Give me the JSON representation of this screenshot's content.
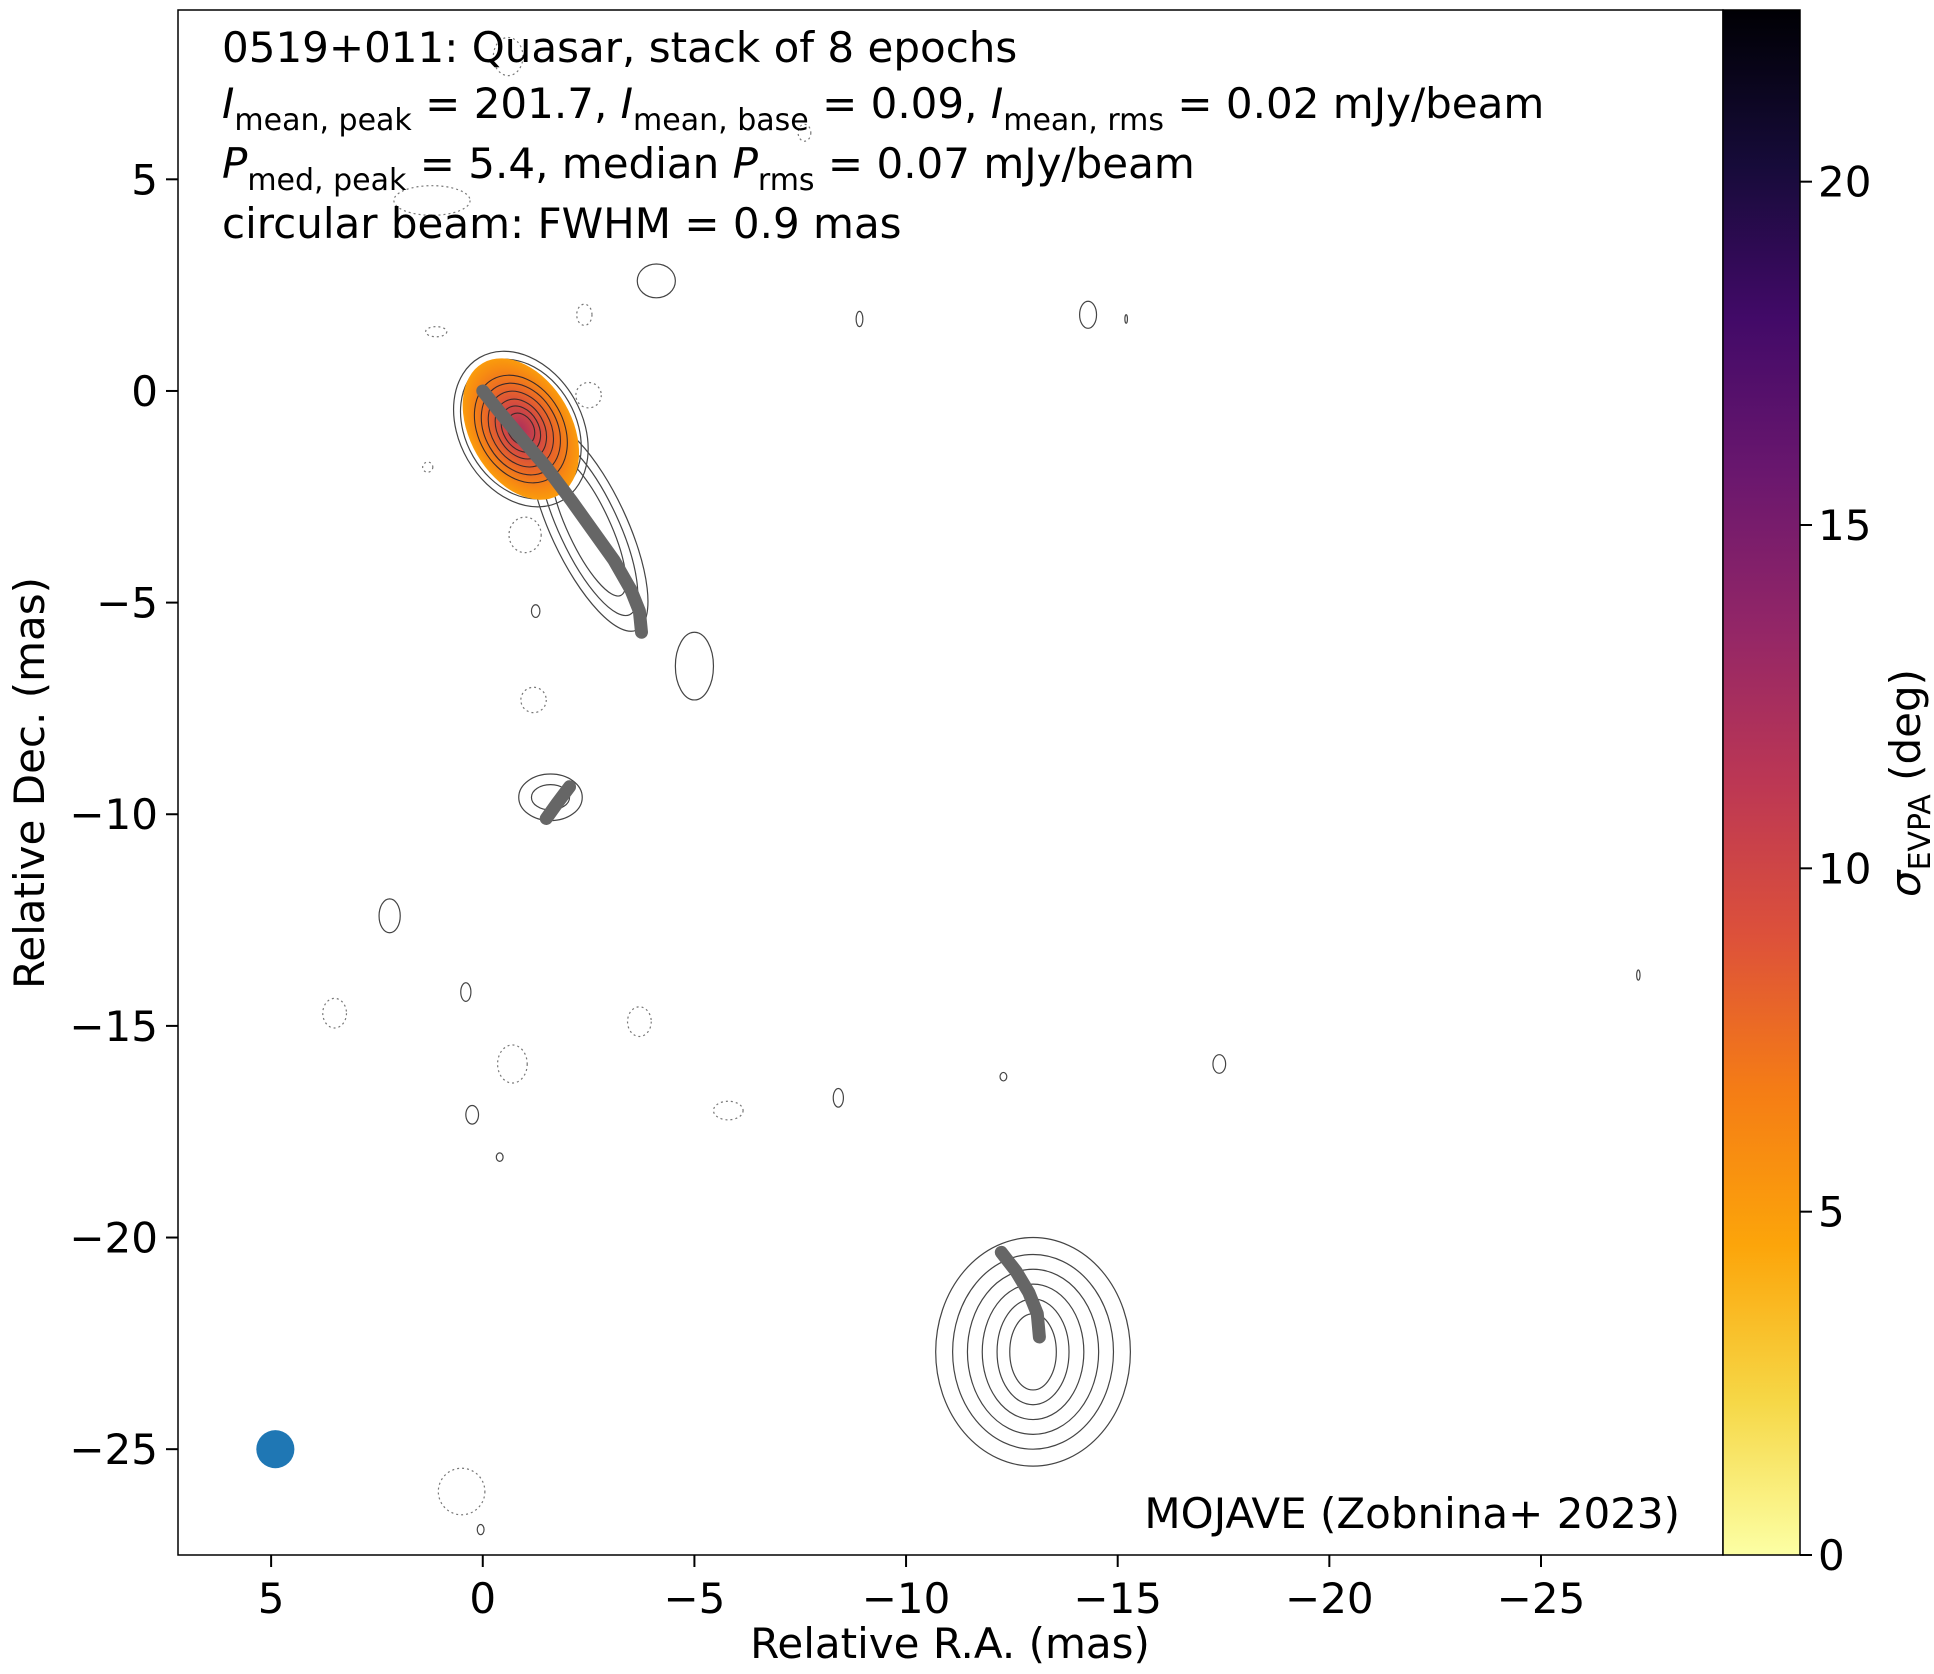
{
  "chart_data": {
    "type": "heatmap",
    "title_lines": [
      "0519+011: Quasar, stack of 8 epochs",
      "I_mean,peak = 201.7, I_mean,base = 0.09, I_mean,rms = 0.02 mJy/beam",
      "P_med,peak = 5.4, median P_rms = 0.07 mJy/beam",
      "circular beam: FWHM = 0.9 mas"
    ],
    "title": {
      "line1": "0519+011: Quasar, stack of 8 epochs",
      "line2": {
        "sym": "I",
        "sub_peak": "mean, peak",
        "val_peak": " = 201.7, ",
        "sub_base": "mean, base",
        "val_base": " = 0.09, ",
        "sub_rms": "mean, rms",
        "val_rms": " = 0.02 mJy/beam"
      },
      "line3": {
        "sym": "P",
        "sub_peak": "med, peak",
        "val_peak": " = 5.4, median ",
        "sub_rms": "rms",
        "val_rms": " = 0.07 mJy/beam"
      },
      "line4": "circular beam: FWHM = 0.9 mas"
    },
    "credit": "MOJAVE (Zobnina+ 2023)",
    "xlabel": "Relative R.A. (mas)",
    "ylabel": "Relative Dec. (mas)",
    "colorbar_label": {
      "sym": "σ",
      "sub": "EVPA",
      "unit": " (deg)"
    },
    "xlim": [
      7.2,
      -29.3
    ],
    "ylim": [
      -27.5,
      9.0
    ],
    "xticks": [
      5,
      0,
      -5,
      -10,
      -15,
      -20,
      -25
    ],
    "xtick_labels": [
      "5",
      "0",
      "−5",
      "−10",
      "−15",
      "−20",
      "−25"
    ],
    "yticks": [
      5,
      0,
      -5,
      -10,
      -15,
      -20,
      -25
    ],
    "ytick_labels": [
      "5",
      "0",
      "−5",
      "−10",
      "−15",
      "−20",
      "−25"
    ],
    "colorbar_range": [
      0,
      22.5
    ],
    "colorbar_ticks": [
      0,
      5,
      10,
      15,
      20
    ],
    "colorbar_tick_labels": [
      "0",
      "5",
      "10",
      "15",
      "20"
    ],
    "colormap": "inferno_r",
    "colormap_stops": [
      "#fcffa4",
      "#f6d746",
      "#fca50a",
      "#f57d15",
      "#dd513a",
      "#bc3754",
      "#932667",
      "#6a176e",
      "#420a68",
      "#160b39",
      "#000004"
    ],
    "beam": {
      "x": 4.9,
      "y": -25.0,
      "fwhm_mas": 0.9,
      "color": "#1f77b4"
    },
    "jet_ridgeline_color": "#666666",
    "ridgelines": [
      [
        [
          0.0,
          0.0
        ],
        [
          -0.4,
          -0.5
        ],
        [
          -0.9,
          -1.1
        ],
        [
          -1.5,
          -1.8
        ],
        [
          -2.1,
          -2.6
        ],
        [
          -2.6,
          -3.3
        ],
        [
          -3.1,
          -4.0
        ],
        [
          -3.5,
          -4.7
        ],
        [
          -3.7,
          -5.2
        ],
        [
          -3.75,
          -5.7
        ]
      ],
      [
        [
          -2.05,
          -9.35
        ],
        [
          -1.75,
          -9.75
        ],
        [
          -1.5,
          -10.1
        ]
      ],
      [
        [
          -12.25,
          -20.35
        ],
        [
          -12.6,
          -20.8
        ],
        [
          -12.9,
          -21.3
        ],
        [
          -13.1,
          -21.8
        ],
        [
          -13.15,
          -22.35
        ]
      ]
    ],
    "contours_positive": [
      {
        "cx": -0.9,
        "cy": -0.9,
        "rx_list": [
          1.45,
          1.3,
          1.15,
          1.0,
          0.85,
          0.7,
          0.55,
          0.42,
          0.3
        ],
        "ry_list": [
          1.95,
          1.75,
          1.55,
          1.35,
          1.15,
          0.95,
          0.75,
          0.58,
          0.4
        ],
        "angle": -30
      },
      {
        "cx": -2.5,
        "cy": -3.2,
        "rx_list": [
          0.9,
          0.7,
          0.5
        ],
        "ry_list": [
          2.7,
          2.3,
          1.8
        ],
        "angle": -25
      },
      {
        "cx": -5.0,
        "cy": -6.5,
        "rx_list": [
          0.45
        ],
        "ry_list": [
          0.8
        ],
        "angle": 0
      },
      {
        "cx": -1.6,
        "cy": -9.6,
        "rx_list": [
          0.75,
          0.45
        ],
        "ry_list": [
          0.55,
          0.3
        ],
        "angle": 0
      },
      {
        "cx": -13.0,
        "cy": -22.7,
        "rx_list": [
          2.3,
          1.9,
          1.55,
          1.2,
          0.85,
          0.55
        ],
        "ry_list": [
          2.7,
          2.3,
          1.95,
          1.6,
          1.25,
          0.9
        ],
        "angle": 0
      },
      {
        "cx": -4.1,
        "cy": 2.6,
        "rx_list": [
          0.45
        ],
        "ry_list": [
          0.4
        ],
        "angle": 0
      },
      {
        "cx": -14.3,
        "cy": 1.8,
        "rx_list": [
          0.2
        ],
        "ry_list": [
          0.32
        ],
        "angle": 0
      },
      {
        "cx": -8.9,
        "cy": 1.7,
        "rx_list": [
          0.08
        ],
        "ry_list": [
          0.18
        ],
        "angle": 0
      },
      {
        "cx": -15.2,
        "cy": 1.7,
        "rx_list": [
          0.03
        ],
        "ry_list": [
          0.1
        ],
        "angle": 0
      },
      {
        "cx": -1.25,
        "cy": -5.2,
        "rx_list": [
          0.1
        ],
        "ry_list": [
          0.15
        ],
        "angle": 0
      },
      {
        "cx": 2.2,
        "cy": -12.4,
        "rx_list": [
          0.25
        ],
        "ry_list": [
          0.4
        ],
        "angle": 0
      },
      {
        "cx": 0.4,
        "cy": -14.2,
        "rx_list": [
          0.12
        ],
        "ry_list": [
          0.22
        ],
        "angle": 0
      },
      {
        "cx": 0.25,
        "cy": -17.1,
        "rx_list": [
          0.15
        ],
        "ry_list": [
          0.22
        ],
        "angle": 0
      },
      {
        "cx": -0.4,
        "cy": -18.1,
        "rx_list": [
          0.08
        ],
        "ry_list": [
          0.1
        ],
        "angle": 0
      },
      {
        "cx": -8.4,
        "cy": -16.7,
        "rx_list": [
          0.12
        ],
        "ry_list": [
          0.22
        ],
        "angle": 0
      },
      {
        "cx": -12.3,
        "cy": -16.2,
        "rx_list": [
          0.08
        ],
        "ry_list": [
          0.1
        ],
        "angle": 0
      },
      {
        "cx": -17.4,
        "cy": -15.9,
        "rx_list": [
          0.15
        ],
        "ry_list": [
          0.22
        ],
        "angle": 0
      },
      {
        "cx": -27.3,
        "cy": -13.8,
        "rx_list": [
          0.04
        ],
        "ry_list": [
          0.12
        ],
        "angle": 0
      },
      {
        "cx": 0.05,
        "cy": -26.9,
        "rx_list": [
          0.08
        ],
        "ry_list": [
          0.12
        ],
        "angle": 0
      }
    ],
    "contours_negative": [
      {
        "cx": -0.6,
        "cy": 7.9,
        "rx_list": [
          0.35
        ],
        "ry_list": [
          0.45
        ]
      },
      {
        "cx": 1.2,
        "cy": 4.5,
        "rx_list": [
          0.9
        ],
        "ry_list": [
          0.35
        ]
      },
      {
        "cx": -7.6,
        "cy": 6.1,
        "rx_list": [
          0.15
        ],
        "ry_list": [
          0.2
        ]
      },
      {
        "cx": -2.4,
        "cy": 1.8,
        "rx_list": [
          0.18
        ],
        "ry_list": [
          0.25
        ]
      },
      {
        "cx": 1.1,
        "cy": 1.4,
        "rx_list": [
          0.25
        ],
        "ry_list": [
          0.12
        ]
      },
      {
        "cx": -2.5,
        "cy": -0.1,
        "rx_list": [
          0.3
        ],
        "ry_list": [
          0.3
        ]
      },
      {
        "cx": -1.0,
        "cy": -3.4,
        "rx_list": [
          0.38
        ],
        "ry_list": [
          0.42
        ]
      },
      {
        "cx": -1.2,
        "cy": -7.3,
        "rx_list": [
          0.3
        ],
        "ry_list": [
          0.3
        ]
      },
      {
        "cx": 3.5,
        "cy": -14.7,
        "rx_list": [
          0.28
        ],
        "ry_list": [
          0.35
        ]
      },
      {
        "cx": -3.7,
        "cy": -14.9,
        "rx_list": [
          0.28
        ],
        "ry_list": [
          0.35
        ]
      },
      {
        "cx": -0.7,
        "cy": -15.9,
        "rx_list": [
          0.35
        ],
        "ry_list": [
          0.45
        ]
      },
      {
        "cx": -5.8,
        "cy": -17.0,
        "rx_list": [
          0.35
        ],
        "ry_list": [
          0.22
        ]
      },
      {
        "cx": 0.5,
        "cy": -26.0,
        "rx_list": [
          0.55
        ],
        "ry_list": [
          0.55
        ]
      },
      {
        "cx": 1.3,
        "cy": -1.8,
        "rx_list": [
          0.12
        ],
        "ry_list": [
          0.12
        ]
      }
    ],
    "evpa_region": {
      "cx": -0.9,
      "cy": -0.9,
      "rx": 1.2,
      "ry": 1.8,
      "angle": -30,
      "core_sigma": 12,
      "edge_sigma": 5
    }
  }
}
